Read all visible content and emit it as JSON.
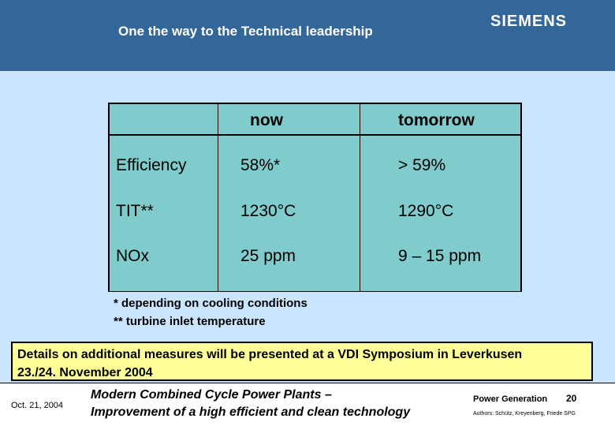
{
  "header": {
    "title": "One the way to the Technical leadership",
    "logo_text": "SIEMENS"
  },
  "table": {
    "columns": [
      "",
      "now",
      "tomorrow"
    ],
    "rows": [
      {
        "label": "Efficiency",
        "now": "58%*",
        "tomorrow": "> 59%"
      },
      {
        "label": "TIT**",
        "now": "1230°C",
        "tomorrow": "1290°C"
      },
      {
        "label": "NOx",
        "now": "25 ppm",
        "tomorrow": "9 – 15 ppm"
      }
    ]
  },
  "footnotes": [
    "* depending on cooling conditions",
    "** turbine inlet temperature"
  ],
  "details": {
    "line1": "Details on additional measures will be presented at a VDI Symposium in Leverkusen",
    "line2": "23./24. November 2004"
  },
  "footer": {
    "date": "Oct. 21, 2004",
    "subtitle_line1": "Modern Combined Cycle Power Plants –",
    "subtitle_line2": "Improvement of a high efficient and clean technology",
    "division": "Power Generation",
    "page": "20",
    "authors": "Authors: Schütz, Kreyenberg, Friede SPG"
  },
  "colors": {
    "header_bg": "#336699",
    "content_bg": "#cce5ff",
    "table_bg": "#80cccc",
    "details_bg": "#ffff99"
  }
}
